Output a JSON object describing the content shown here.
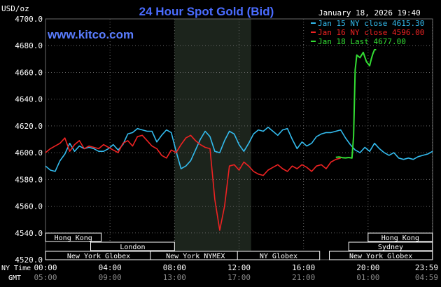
{
  "header": {
    "title": "24 Hour Spot Gold (Bid)",
    "unit": "USD/oz",
    "datetime": "January 18, 2026 19:40",
    "site": "www.kitco.com"
  },
  "colors": {
    "background": "#000000",
    "title": "#4a6cff",
    "site": "#5a7dff",
    "grid": "#6a6a6a",
    "text": "#ffffff",
    "jan15": "#33bbee",
    "jan16": "#ee2222",
    "jan18": "#33dd33",
    "shade": "#1c241c",
    "session_box": "#ffffff"
  },
  "legend": [
    {
      "label": "Jan 15 NY close 4615.30",
      "color": "#33bbee"
    },
    {
      "label": "Jan 16 NY close 4596.00",
      "color": "#ee2222"
    },
    {
      "label": "Jan 18 Last 4677.00",
      "color": "#33dd33"
    }
  ],
  "time_rows": {
    "ny_label": "NY Time",
    "gmt_label": "GMT",
    "ny_ticks": [
      "00:00",
      "04:00",
      "08:00",
      "12:00",
      "16:00",
      "20:00",
      "23:59"
    ],
    "gmt_ticks": [
      "05:00",
      "09:00",
      "13:00",
      "17:00",
      "21:00",
      "01:00",
      "04:59"
    ]
  },
  "sessions": [
    {
      "label": "Hong Kong",
      "start": 0,
      "end": 3.45
    },
    {
      "label": "London",
      "start": 2.8,
      "end": 8.0
    },
    {
      "label": "New York Globex",
      "start": 0,
      "end": 6.6
    },
    {
      "label": "New York NYMEX",
      "start": 6.5,
      "end": 12.1
    },
    {
      "label": "NY Globex",
      "start": 11.9,
      "end": 17.0
    },
    {
      "label": "Hong Kong",
      "start": 20.0,
      "end": 23.99
    },
    {
      "label": "Sydney",
      "start": 18.8,
      "end": 23.99
    },
    {
      "label": "New York Globex",
      "start": 17.6,
      "end": 23.99
    }
  ],
  "chart_data": {
    "type": "line",
    "x_unit": "NY time (hours)",
    "xlim": [
      0,
      24
    ],
    "ylim": [
      4520,
      4700
    ],
    "yticks": [
      4520,
      4540,
      4560,
      4580,
      4600,
      4620,
      4640,
      4660,
      4680,
      4700
    ],
    "ytick_labels": [
      "4520.0",
      "4540.0",
      "4560.0",
      "4580.0",
      "4600.0",
      "4620.0",
      "4640.0",
      "4660.0",
      "4680.0",
      "4700.0"
    ],
    "xticks": [
      0,
      4,
      8,
      12,
      16,
      20,
      23.983
    ],
    "shaded_region": [
      8.0,
      12.75
    ],
    "series": [
      {
        "name": "Jan 15 NY close 4615.30",
        "x": [
          0,
          0.3,
          0.6,
          0.9,
          1.2,
          1.5,
          1.8,
          2.1,
          2.4,
          2.7,
          3.0,
          3.3,
          3.6,
          3.9,
          4.2,
          4.5,
          4.8,
          5.1,
          5.4,
          5.7,
          6.0,
          6.3,
          6.6,
          6.9,
          7.2,
          7.5,
          7.8,
          8.1,
          8.4,
          8.7,
          9.0,
          9.3,
          9.6,
          9.9,
          10.2,
          10.5,
          10.8,
          11.1,
          11.4,
          11.7,
          12.0,
          12.3,
          12.6,
          12.9,
          13.2,
          13.5,
          13.8,
          14.1,
          14.4,
          14.7,
          15.0,
          15.3,
          15.6,
          15.9,
          16.2,
          16.5,
          16.8,
          17.1,
          17.4,
          17.7,
          18.0,
          18.3,
          18.6,
          18.9,
          19.2,
          19.5,
          19.8,
          20.1,
          20.4,
          20.7,
          21.0,
          21.3,
          21.6,
          21.9,
          22.2,
          22.5,
          22.8,
          23.1,
          23.4,
          23.7,
          24.0
        ],
        "y": [
          4590,
          4587,
          4586,
          4594,
          4599,
          4607,
          4601,
          4605,
          4603,
          4604,
          4603,
          4601,
          4601,
          4603,
          4606,
          4602,
          4606,
          4614,
          4615,
          4618,
          4617,
          4616,
          4616,
          4608,
          4613,
          4617,
          4615,
          4601,
          4588,
          4590,
          4594,
          4602,
          4610,
          4616,
          4612,
          4601,
          4600,
          4609,
          4616,
          4614,
          4606,
          4601,
          4607,
          4614,
          4617,
          4616,
          4619,
          4616,
          4613,
          4617,
          4618,
          4610,
          4603,
          4608,
          4605,
          4607,
          4612,
          4614,
          4615,
          4615,
          4616,
          4617,
          4611,
          4606,
          4602,
          4600,
          4604,
          4601,
          4607,
          4603,
          4600,
          4598,
          4600,
          4596,
          4595,
          4596,
          4595,
          4597,
          4598,
          4599,
          4601
        ]
      },
      {
        "name": "Jan 16 NY close 4596.00",
        "x": [
          0,
          0.3,
          0.6,
          0.9,
          1.2,
          1.5,
          1.8,
          2.1,
          2.4,
          2.7,
          3.0,
          3.3,
          3.6,
          3.9,
          4.2,
          4.5,
          4.8,
          5.1,
          5.4,
          5.7,
          6.0,
          6.3,
          6.6,
          6.9,
          7.2,
          7.5,
          7.8,
          8.1,
          8.4,
          8.7,
          9.0,
          9.3,
          9.6,
          9.9,
          10.2,
          10.5,
          10.8,
          11.1,
          11.4,
          11.7,
          12.0,
          12.3,
          12.6,
          12.9,
          13.2,
          13.5,
          13.8,
          14.1,
          14.4,
          14.7,
          15.0,
          15.3,
          15.6,
          15.9,
          16.2,
          16.5,
          16.8,
          17.1,
          17.4,
          17.7,
          18.0,
          18.3
        ],
        "y": [
          4600,
          4603,
          4605,
          4607,
          4611,
          4601,
          4606,
          4609,
          4603,
          4605,
          4604,
          4603,
          4606,
          4604,
          4602,
          4600,
          4607,
          4609,
          4605,
          4612,
          4613,
          4609,
          4605,
          4603,
          4598,
          4596,
          4602,
          4600,
          4606,
          4611,
          4613,
          4609,
          4606,
          4604,
          4603,
          4565,
          4542,
          4560,
          4590,
          4591,
          4587,
          4593,
          4590,
          4586,
          4584,
          4583,
          4587,
          4589,
          4591,
          4588,
          4586,
          4590,
          4588,
          4591,
          4589,
          4586,
          4590,
          4591,
          4588,
          4593,
          4595,
          4596
        ]
      },
      {
        "name": "Jan 18 Last 4677.00",
        "x": [
          18.0,
          18.2,
          18.4,
          18.6,
          18.8,
          19.0,
          19.1,
          19.2,
          19.3,
          19.5,
          19.7,
          19.9,
          20.1,
          20.2,
          20.3,
          20.4,
          20.5
        ],
        "y": [
          4596.5,
          4596.8,
          4596.3,
          4596.1,
          4596.4,
          4596.0,
          4612,
          4662,
          4673,
          4671,
          4675,
          4668,
          4665,
          4670,
          4674,
          4677,
          4677
        ]
      }
    ]
  }
}
